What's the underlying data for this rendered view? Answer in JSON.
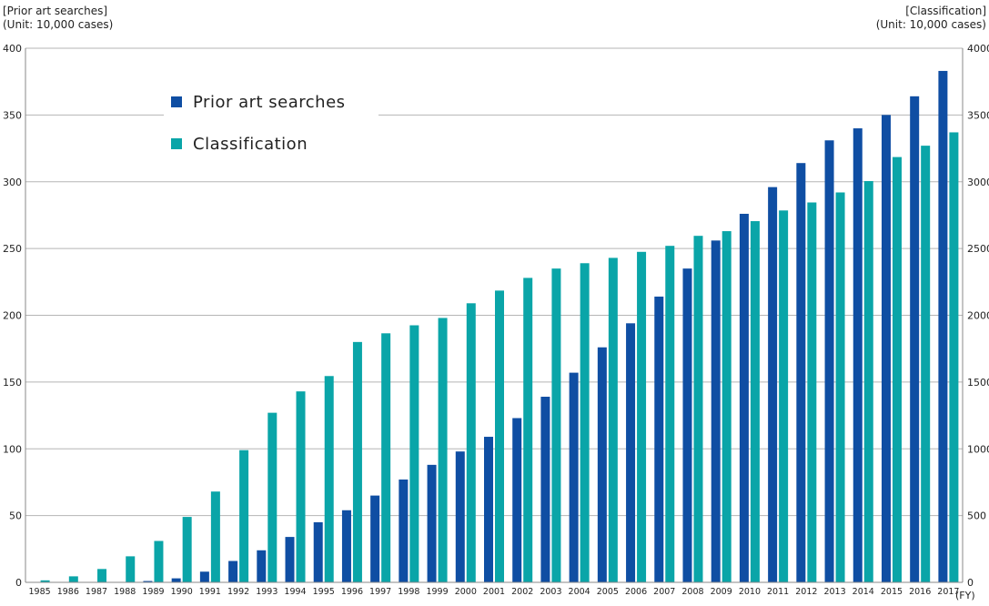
{
  "chart_data": {
    "type": "bar",
    "left_axis_title": "[Prior art searches]",
    "left_axis_unit": "(Unit: 10,000 cases)",
    "right_axis_title": "[Classification]",
    "right_axis_unit": "(Unit: 10,000 cases)",
    "x_unit": "(FY)",
    "categories": [
      "1985",
      "1986",
      "1987",
      "1988",
      "1989",
      "1990",
      "1991",
      "1992",
      "1993",
      "1994",
      "1995",
      "1996",
      "1997",
      "1998",
      "1999",
      "2000",
      "2001",
      "2002",
      "2003",
      "2004",
      "2005",
      "2006",
      "2007",
      "2008",
      "2009",
      "2010",
      "2011",
      "2012",
      "2013",
      "2014",
      "2015",
      "2016",
      "2017"
    ],
    "left_ylim": [
      0,
      400
    ],
    "left_yticks": [
      "0",
      "50",
      "100",
      "150",
      "200",
      "250",
      "300",
      "350",
      "400"
    ],
    "right_ylim": [
      0,
      4000
    ],
    "right_yticks": [
      "0",
      "500",
      "1000",
      "1500",
      "2000",
      "2500",
      "3000",
      "3500",
      "4000"
    ],
    "grid": "horizontal",
    "legend_position": "top-left",
    "series": [
      {
        "name": "Prior art searches",
        "axis": "left",
        "color": "#0f4ea3",
        "values": [
          0,
          0,
          0,
          0,
          1,
          3,
          8,
          16,
          24,
          34,
          45,
          54,
          65,
          77,
          88,
          98,
          109,
          123,
          139,
          157,
          176,
          194,
          214,
          235,
          256,
          276,
          296,
          314,
          331,
          340,
          350,
          364,
          383
        ]
      },
      {
        "name": "Classification",
        "axis": "right",
        "color": "#0aa5a8",
        "values": [
          15,
          45,
          100,
          195,
          310,
          490,
          680,
          990,
          1270,
          1430,
          1545,
          1800,
          1865,
          1925,
          1980,
          2090,
          2185,
          2280,
          2350,
          2390,
          2430,
          2475,
          2520,
          2595,
          2630,
          2705,
          2785,
          2845,
          2920,
          3005,
          3185,
          3270,
          3370
        ]
      }
    ]
  }
}
